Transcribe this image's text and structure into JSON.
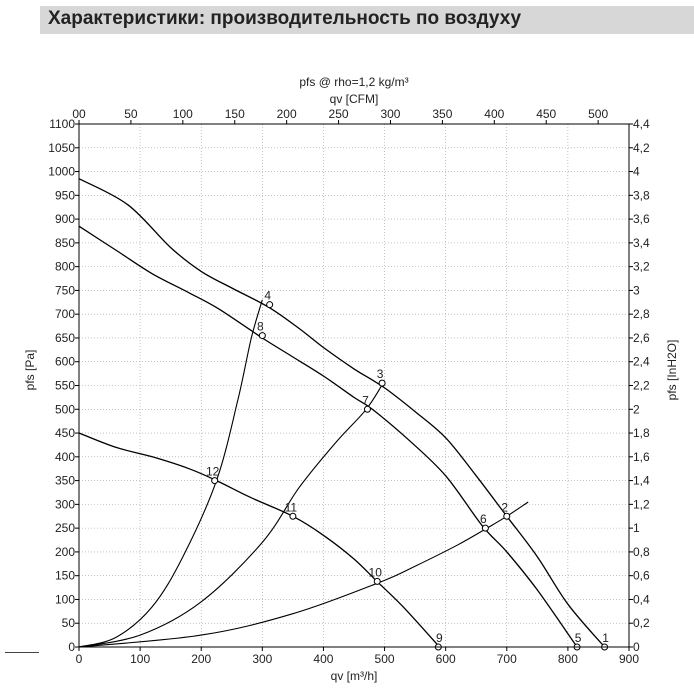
{
  "header": {
    "title": "Характеристики: производительность по воздуху"
  },
  "chart_data": {
    "type": "line",
    "title": "pfs @ rho=1,2 kg/m³",
    "xlabel": "qv [m³/h]",
    "x2label": "qv [CFM]",
    "ylabel": "pfs [Pa]",
    "y2label": "pfs [InH2O]",
    "xlim": [
      0,
      900
    ],
    "ylim": [
      0,
      1100
    ],
    "x_ticks": [
      "0",
      "100",
      "200",
      "300",
      "400",
      "500",
      "600",
      "700",
      "800",
      "900"
    ],
    "y_ticks": [
      "0",
      "50",
      "100",
      "150",
      "200",
      "250",
      "300",
      "350",
      "400",
      "450",
      "500",
      "550",
      "600",
      "650",
      "700",
      "750",
      "800",
      "850",
      "900",
      "950",
      "1000",
      "1050",
      "1100"
    ],
    "x2_ticks": [
      "00",
      "50",
      "100",
      "150",
      "200",
      "250",
      "300",
      "350",
      "400",
      "450",
      "500"
    ],
    "y2_ticks": [
      "0",
      "0,2",
      "0,4",
      "0,6",
      "0,8",
      "1",
      "1,2",
      "1,4",
      "1,6",
      "1,8",
      "2",
      "2,2",
      "2,4",
      "2,6",
      "2,8",
      "3",
      "3,2",
      "3,4",
      "3,6",
      "3,8",
      "4",
      "4,2",
      "4,4"
    ],
    "grid": true,
    "fan_curves": [
      {
        "points": [
          [
            0,
            985
          ],
          [
            80,
            930
          ],
          [
            150,
            840
          ],
          [
            200,
            790
          ],
          [
            250,
            755
          ],
          [
            310,
            715
          ],
          [
            360,
            670
          ],
          [
            400,
            630
          ],
          [
            450,
            585
          ],
          [
            500,
            545
          ],
          [
            550,
            495
          ],
          [
            600,
            440
          ],
          [
            650,
            360
          ],
          [
            700,
            275
          ],
          [
            750,
            190
          ],
          [
            800,
            90
          ],
          [
            860,
            0
          ]
        ]
      },
      {
        "points": [
          [
            0,
            885
          ],
          [
            60,
            835
          ],
          [
            120,
            785
          ],
          [
            180,
            745
          ],
          [
            230,
            710
          ],
          [
            300,
            650
          ],
          [
            350,
            610
          ],
          [
            400,
            570
          ],
          [
            450,
            525
          ],
          [
            480,
            500
          ],
          [
            540,
            435
          ],
          [
            600,
            360
          ],
          [
            660,
            255
          ],
          [
            700,
            200
          ],
          [
            750,
            120
          ],
          [
            815,
            0
          ]
        ]
      },
      {
        "points": [
          [
            0,
            450
          ],
          [
            60,
            420
          ],
          [
            120,
            400
          ],
          [
            180,
            375
          ],
          [
            225,
            350
          ],
          [
            280,
            315
          ],
          [
            350,
            275
          ],
          [
            400,
            235
          ],
          [
            450,
            185
          ],
          [
            490,
            135
          ],
          [
            530,
            85
          ],
          [
            590,
            0
          ]
        ]
      }
    ],
    "system_curves": [
      {
        "points": [
          [
            0,
            0
          ],
          [
            60,
            20
          ],
          [
            120,
            85
          ],
          [
            170,
            190
          ],
          [
            225,
            350
          ],
          [
            260,
            520
          ],
          [
            282,
            650
          ],
          [
            300,
            730
          ]
        ]
      },
      {
        "points": [
          [
            0,
            0
          ],
          [
            100,
            25
          ],
          [
            200,
            95
          ],
          [
            300,
            220
          ],
          [
            360,
            335
          ],
          [
            420,
            430
          ],
          [
            470,
            500
          ],
          [
            500,
            560
          ]
        ]
      },
      {
        "points": [
          [
            0,
            0
          ],
          [
            200,
            25
          ],
          [
            350,
            70
          ],
          [
            490,
            135
          ],
          [
            550,
            170
          ],
          [
            620,
            215
          ],
          [
            665,
            248
          ],
          [
            700,
            275
          ],
          [
            735,
            305
          ]
        ]
      }
    ],
    "operating_points": [
      {
        "label": "1",
        "x": 860,
        "y": 0
      },
      {
        "label": "2",
        "x": 700,
        "y": 275
      },
      {
        "label": "3",
        "x": 496,
        "y": 555
      },
      {
        "label": "4",
        "x": 312,
        "y": 720
      },
      {
        "label": "5",
        "x": 815,
        "y": 0
      },
      {
        "label": "6",
        "x": 665,
        "y": 250
      },
      {
        "label": "7",
        "x": 472,
        "y": 500
      },
      {
        "label": "8",
        "x": 300,
        "y": 655
      },
      {
        "label": "9",
        "x": 588,
        "y": 0
      },
      {
        "label": "10",
        "x": 488,
        "y": 138
      },
      {
        "label": "11",
        "x": 350,
        "y": 275
      },
      {
        "label": "12",
        "x": 222,
        "y": 350
      }
    ]
  }
}
